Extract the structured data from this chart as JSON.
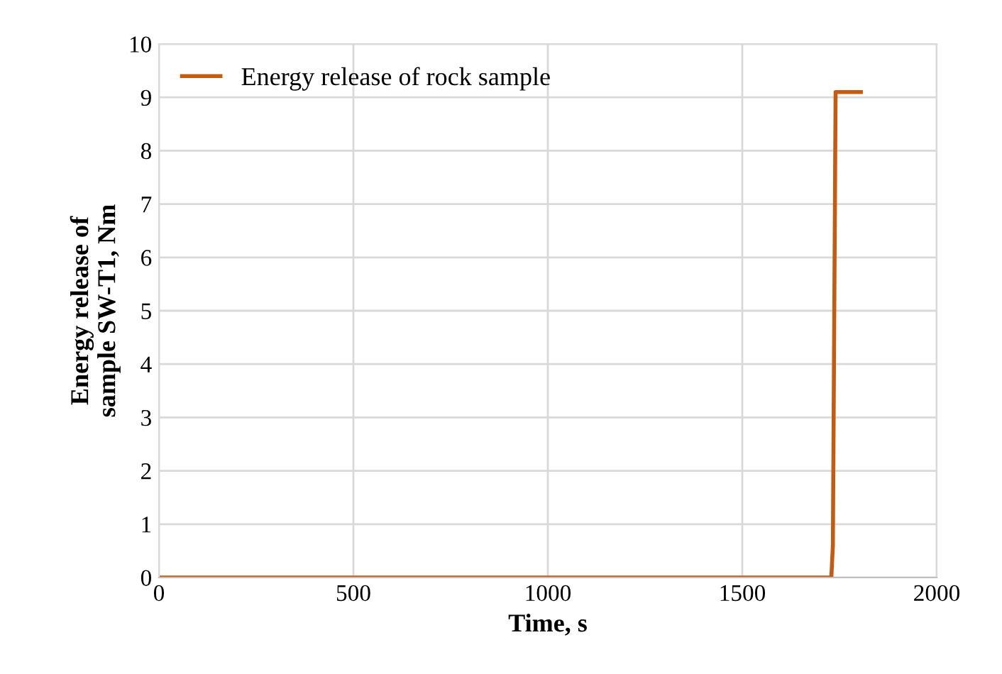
{
  "chart_data": {
    "type": "line",
    "xlabel": "Time, s",
    "ylabel": "Energy release of\nsample SW-T1, Nm",
    "series": [
      {
        "name": "Energy release of rock sample",
        "color": "#c55a11",
        "x": [
          0,
          1729,
          1733,
          1740,
          1805
        ],
        "values": [
          0,
          0,
          0.6,
          9.1,
          9.1
        ]
      }
    ],
    "xlim": [
      0,
      2000
    ],
    "xticks": [
      0,
      500,
      1000,
      1500,
      2000
    ],
    "ylim": [
      0,
      10
    ],
    "yticks": [
      0,
      1,
      2,
      3,
      4,
      5,
      6,
      7,
      8,
      9,
      10
    ],
    "grid": true,
    "legend": "top left",
    "marker": "none",
    "line_style": "solid"
  }
}
